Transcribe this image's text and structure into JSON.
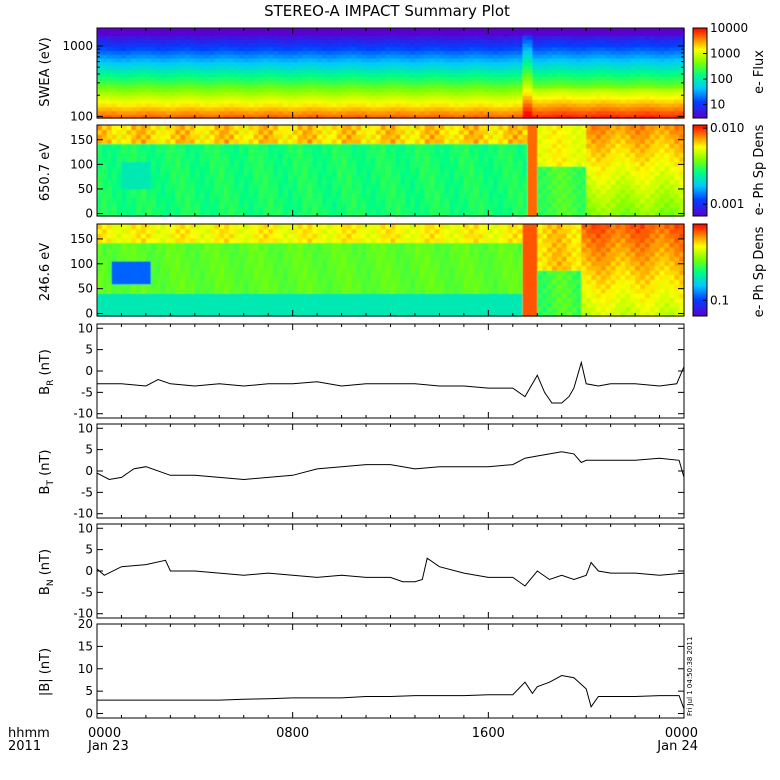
{
  "chart_data": [
    {
      "type": "heatmap",
      "title": "STEREO-A IMPACT Summary Plot",
      "ylabel": "SWEA (eV)",
      "yscale": "log",
      "ylim": [
        95,
        1800
      ],
      "yticks": [
        100,
        1000
      ],
      "ytick_labels": [
        "100",
        "1000"
      ],
      "colorbar": {
        "label": "e- Flux",
        "scale": "log",
        "range": [
          3,
          10000
        ],
        "ticks": [
          10,
          100,
          1000,
          10000
        ],
        "tick_labels": [
          "10",
          "100",
          "1000",
          "10000"
        ]
      }
    },
    {
      "type": "heatmap",
      "ylabel": "650.7 eV",
      "ylim": [
        -5,
        180
      ],
      "yticks": [
        0,
        50,
        100,
        150
      ],
      "ytick_labels": [
        "0",
        "50",
        "100",
        "150"
      ],
      "colorbar": {
        "label": "e- Ph Sp Dens",
        "scale": "log",
        "range": [
          0.0007,
          0.011
        ],
        "ticks": [
          0.001,
          0.01
        ],
        "tick_labels": [
          "0.001",
          "0.010"
        ]
      }
    },
    {
      "type": "heatmap",
      "ylabel": "246.6 eV",
      "ylim": [
        -5,
        180
      ],
      "yticks": [
        0,
        50,
        100,
        150
      ],
      "ytick_labels": [
        "0",
        "50",
        "100",
        "150"
      ],
      "colorbar": {
        "label": "e- Ph Sp Dens",
        "scale": "log",
        "range": [
          0.06,
          1.2
        ],
        "ticks": [
          0.1
        ],
        "tick_labels": [
          "0.1"
        ]
      }
    },
    {
      "type": "line",
      "ylabel": "B",
      "ylabel_sub": "R",
      "ylabel_unit": "(nT)",
      "ylim": [
        -11,
        11
      ],
      "yticks": [
        -10,
        -5,
        0,
        5,
        10
      ],
      "ytick_labels": [
        "-10",
        "-5",
        "0",
        "5",
        "10"
      ],
      "x": [
        0,
        1,
        2,
        2.5,
        3,
        4,
        5,
        6,
        7,
        8,
        9,
        10,
        11,
        12,
        13,
        14,
        15,
        16,
        17,
        17.5,
        17.8,
        18,
        18.3,
        18.6,
        19,
        19.3,
        19.5,
        19.8,
        20,
        20.5,
        21,
        22,
        23,
        23.7,
        24
      ],
      "y": [
        -3,
        -3,
        -3.5,
        -2,
        -3,
        -3.5,
        -3,
        -3.5,
        -3,
        -3,
        -2.5,
        -3.5,
        -3,
        -3,
        -3,
        -3.5,
        -3.5,
        -4,
        -4,
        -6,
        -3,
        -1,
        -5,
        -7.5,
        -7.5,
        -6,
        -4,
        2,
        -3,
        -3.5,
        -3,
        -3,
        -3.5,
        -3,
        1
      ]
    },
    {
      "type": "line",
      "ylabel": "B",
      "ylabel_sub": "T",
      "ylabel_unit": "(nT)",
      "ylim": [
        -11,
        11
      ],
      "yticks": [
        -10,
        -5,
        0,
        5,
        10
      ],
      "ytick_labels": [
        "-10",
        "-5",
        "0",
        "5",
        "10"
      ],
      "x": [
        0,
        0.5,
        1,
        1.5,
        2,
        3,
        4,
        5,
        6,
        7,
        8,
        9,
        10,
        11,
        12,
        13,
        14,
        15,
        16,
        17,
        17.5,
        18,
        18.5,
        19,
        19.5,
        19.8,
        20,
        21,
        22,
        23,
        23.8,
        24
      ],
      "y": [
        -0.5,
        -2,
        -1.5,
        0.5,
        1,
        -1,
        -1,
        -1.5,
        -2,
        -1.5,
        -1,
        0.5,
        1,
        1.5,
        1.5,
        0.5,
        1,
        1,
        1,
        1.5,
        3,
        3.5,
        4,
        4.5,
        4,
        2,
        2.5,
        2.5,
        2.5,
        3,
        2.5,
        -1.5
      ]
    },
    {
      "type": "line",
      "ylabel": "B",
      "ylabel_sub": "N",
      "ylabel_unit": "(nT)",
      "ylim": [
        -11,
        11
      ],
      "yticks": [
        -10,
        -5,
        0,
        5,
        10
      ],
      "ytick_labels": [
        "-10",
        "-5",
        "0",
        "5",
        "10"
      ],
      "x": [
        0,
        0.3,
        1,
        2,
        2.8,
        3,
        4,
        5,
        6,
        7,
        8,
        9,
        10,
        11,
        12,
        12.5,
        13,
        13.3,
        13.5,
        14,
        15,
        16,
        17,
        17.5,
        18,
        18.5,
        19,
        19.5,
        20,
        20.2,
        20.5,
        21,
        22,
        23,
        24
      ],
      "y": [
        0.5,
        -1,
        1,
        1.5,
        2.5,
        0,
        0,
        -0.5,
        -1,
        -0.5,
        -1,
        -1.5,
        -1,
        -1.5,
        -1.5,
        -2.5,
        -2.5,
        -2,
        3,
        1,
        -0.5,
        -1.5,
        -1.5,
        -3.5,
        0,
        -2,
        -1,
        -2,
        -1,
        2,
        0,
        -0.5,
        -0.5,
        -1,
        -0.5
      ]
    },
    {
      "type": "line",
      "ylabel": "|B| (nT)",
      "ylim": [
        -1,
        20
      ],
      "yticks": [
        0,
        5,
        10,
        15,
        20
      ],
      "ytick_labels": [
        "0",
        "5",
        "10",
        "15",
        "20"
      ],
      "x": [
        0,
        1,
        2,
        3,
        4,
        5,
        6,
        7,
        8,
        9,
        10,
        11,
        12,
        13,
        14,
        15,
        16,
        17,
        17.5,
        17.8,
        18,
        18.5,
        19,
        19.5,
        20,
        20.2,
        20.5,
        21,
        22,
        23,
        23.8,
        24
      ],
      "y": [
        3,
        3,
        3,
        3,
        3,
        3,
        3.2,
        3.3,
        3.5,
        3.5,
        3.5,
        3.8,
        3.8,
        4,
        4,
        4,
        4.2,
        4.2,
        7,
        4.5,
        6,
        7,
        8.5,
        8,
        5.5,
        1.5,
        3.8,
        3.8,
        3.8,
        4,
        4,
        1
      ]
    }
  ],
  "x_axis": {
    "range_hours": [
      0,
      24
    ],
    "row1_label": "hhmm",
    "row2_label": "2011",
    "ticks": [
      {
        "hour": 0,
        "time": "0000",
        "date": "Jan 23"
      },
      {
        "hour": 8,
        "time": "0800",
        "date": ""
      },
      {
        "hour": 16,
        "time": "1600",
        "date": ""
      },
      {
        "hour": 24,
        "time": "0000",
        "date": "Jan 24"
      }
    ],
    "minor_tick_every_hours": 1
  },
  "stamp": "Fri Jul  1 04:50:38 2011",
  "colors": {
    "line": "#000000",
    "axis": "#000000",
    "background": "#ffffff"
  }
}
